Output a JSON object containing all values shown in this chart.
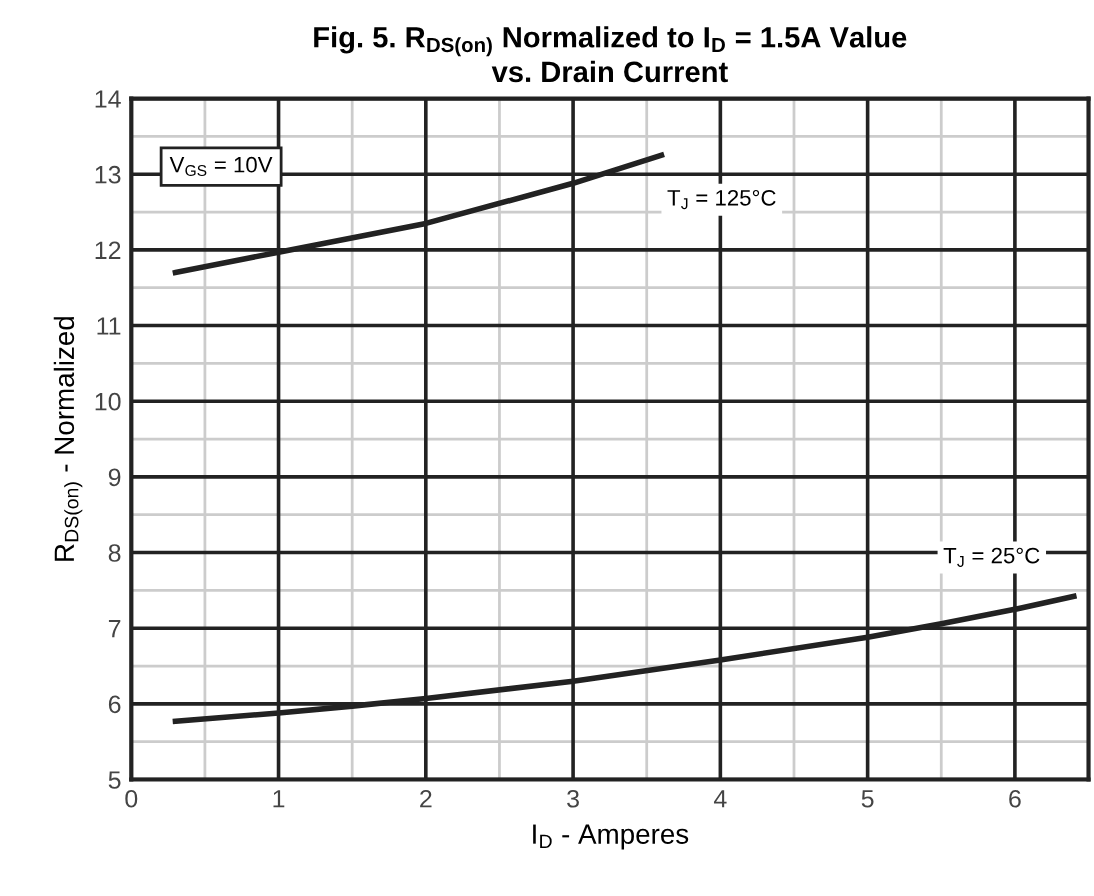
{
  "chart_data": {
    "type": "line",
    "title": "Fig. 5. R$_{DS(on)}$ Normalized to I$_{D}$ = 1.5A Value\nvs. Drain Current",
    "xlabel": "I$_{D}$ - Amperes",
    "ylabel": "R$_{DS(on)}$ - Normalized",
    "xlim": [
      0,
      6.5
    ],
    "xticks": [
      0,
      1,
      2,
      3,
      4,
      5,
      6
    ],
    "ylim": [
      5,
      14
    ],
    "yticks": [
      5,
      6,
      7,
      8,
      9,
      10,
      11,
      12,
      13,
      14
    ],
    "grid": true,
    "marker": "none",
    "line_style": "solid",
    "series": [
      {
        "name": "T$_{J}$ = 125°C",
        "color": "#222222",
        "x": [
          0.3,
          1,
          2,
          3,
          3.6
        ],
        "values": [
          11.7,
          11.97,
          12.35,
          12.88,
          13.25
        ]
      },
      {
        "name": "T$_{J}$ = 25°C",
        "color": "#222222",
        "x": [
          0.3,
          1,
          1.5,
          2,
          3,
          4,
          5,
          5.5,
          6,
          6.4
        ],
        "values": [
          5.77,
          5.88,
          5.97,
          6.07,
          6.3,
          6.58,
          6.88,
          7.06,
          7.25,
          7.42
        ]
      }
    ],
    "annotations": [
      "V$_{GS}$ = 10V"
    ]
  }
}
